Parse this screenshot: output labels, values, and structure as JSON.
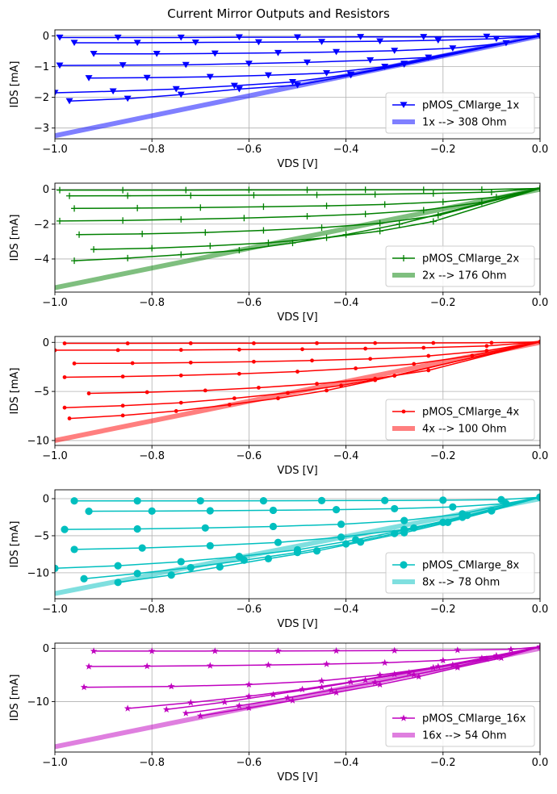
{
  "title": "Current Mirror Outputs and Resistors",
  "colors": {
    "blue": "#0000ff",
    "green": "#008000",
    "red": "#ff0000",
    "cyan": "#00bfbf",
    "magenta": "#bf00bf",
    "grid": "#b0b0b0"
  },
  "chart_data": [
    {
      "type": "line",
      "xlabel": "VDS [V]",
      "ylabel": "IDS [mA]",
      "xlim": [
        -1.0,
        0.0
      ],
      "ylim": [
        -3.35,
        0.2
      ],
      "xticks": [
        -1.0,
        -0.8,
        -0.6,
        -0.4,
        -0.2,
        0.0
      ],
      "xtick_labels": [
        "−1.0",
        "−0.8",
        "−0.6",
        "−0.4",
        "−0.2",
        "0.0"
      ],
      "yticks": [
        -3,
        -2,
        -1,
        0
      ],
      "ytick_labels": [
        "−3",
        "−2",
        "−1",
        "0"
      ],
      "grid": true,
      "legend_position": "lower-right",
      "marker": "triangle-down",
      "color": "#0000ff",
      "curve_series_name": "pMOS_CMlarge_1x",
      "resistor_series_name": "1x --> 308 Ohm",
      "resistor_line": {
        "x": [
          -1.0,
          0.0
        ],
        "y": [
          -3.25,
          0.0
        ]
      },
      "curves": [
        {
          "x": [
            -0.99,
            -0.87,
            -0.74,
            -0.62,
            -0.5,
            -0.37,
            -0.24,
            -0.11,
            0.0
          ],
          "y": [
            -0.05,
            -0.05,
            -0.05,
            -0.04,
            -0.04,
            -0.03,
            -0.03,
            -0.02,
            0.0
          ]
        },
        {
          "x": [
            -0.96,
            -0.83,
            -0.71,
            -0.58,
            -0.45,
            -0.33,
            -0.21,
            -0.09,
            0.0
          ],
          "y": [
            -0.22,
            -0.22,
            -0.21,
            -0.2,
            -0.19,
            -0.17,
            -0.14,
            -0.09,
            0.0
          ]
        },
        {
          "x": [
            -0.92,
            -0.79,
            -0.67,
            -0.54,
            -0.42,
            -0.3,
            -0.18,
            -0.07,
            0.0
          ],
          "y": [
            -0.58,
            -0.58,
            -0.57,
            -0.55,
            -0.52,
            -0.48,
            -0.4,
            -0.23,
            0.0
          ]
        },
        {
          "x": [
            -0.99,
            -0.86,
            -0.73,
            -0.6,
            -0.48,
            -0.35,
            -0.23,
            0.0
          ],
          "y": [
            -0.96,
            -0.95,
            -0.94,
            -0.9,
            -0.86,
            -0.79,
            -0.7,
            0.0
          ]
        },
        {
          "x": [
            -0.93,
            -0.81,
            -0.68,
            -0.56,
            -0.44,
            -0.32,
            0.0
          ],
          "y": [
            -1.37,
            -1.36,
            -1.33,
            -1.28,
            -1.21,
            -1.0,
            0.0
          ]
        },
        {
          "x": [
            -1.0,
            -0.88,
            -0.75,
            -0.63,
            -0.51,
            -0.39,
            -0.28,
            0.0
          ],
          "y": [
            -1.85,
            -1.8,
            -1.73,
            -1.62,
            -1.5,
            -1.25,
            -0.9,
            0.0
          ]
        },
        {
          "x": [
            -0.97,
            -0.85,
            -0.74,
            -0.62,
            -0.5,
            -0.39,
            -0.28,
            0.0
          ],
          "y": [
            -2.12,
            -2.04,
            -1.91,
            -1.73,
            -1.6,
            -1.28,
            -0.93,
            0.0
          ]
        }
      ]
    },
    {
      "type": "line",
      "xlabel": "VDS [V]",
      "ylabel": "IDS [mA]",
      "xlim": [
        -1.0,
        0.0
      ],
      "ylim": [
        -5.9,
        0.35
      ],
      "xticks": [
        -1.0,
        -0.8,
        -0.6,
        -0.4,
        -0.2,
        0.0
      ],
      "xtick_labels": [
        "−1.0",
        "−0.8",
        "−0.6",
        "−0.4",
        "−0.2",
        "0.0"
      ],
      "yticks": [
        -4,
        -2,
        0
      ],
      "ytick_labels": [
        "−4",
        "−2",
        "0"
      ],
      "grid": true,
      "legend_position": "lower-right",
      "marker": "plus",
      "color": "#008000",
      "curve_series_name": "pMOS_CMlarge_2x",
      "resistor_series_name": "2x --> 176 Ohm",
      "resistor_line": {
        "x": [
          -1.0,
          0.0
        ],
        "y": [
          -5.65,
          0.0
        ]
      },
      "curves": [
        {
          "x": [
            -0.99,
            -0.86,
            -0.73,
            -0.6,
            -0.48,
            -0.36,
            -0.24,
            -0.12,
            0.0
          ],
          "y": [
            -0.05,
            -0.05,
            -0.05,
            -0.04,
            -0.04,
            -0.03,
            -0.03,
            -0.02,
            0.05
          ]
        },
        {
          "x": [
            -0.97,
            -0.85,
            -0.72,
            -0.59,
            -0.46,
            -0.34,
            -0.22,
            -0.1,
            0.0
          ],
          "y": [
            -0.38,
            -0.37,
            -0.36,
            -0.34,
            -0.32,
            -0.29,
            -0.24,
            -0.16,
            0.05
          ]
        },
        {
          "x": [
            -0.96,
            -0.83,
            -0.7,
            -0.57,
            -0.44,
            -0.32,
            -0.2,
            -0.09,
            0.0
          ],
          "y": [
            -1.1,
            -1.08,
            -1.05,
            -1.0,
            -0.95,
            -0.87,
            -0.72,
            -0.45,
            0.05
          ]
        },
        {
          "x": [
            -0.99,
            -0.86,
            -0.74,
            -0.61,
            -0.48,
            -0.36,
            -0.24,
            -0.12,
            0.0
          ],
          "y": [
            -1.82,
            -1.79,
            -1.73,
            -1.65,
            -1.55,
            -1.42,
            -1.2,
            -0.75,
            0.05
          ]
        },
        {
          "x": [
            -0.95,
            -0.82,
            -0.69,
            -0.57,
            -0.45,
            -0.33,
            -0.21,
            0.0
          ],
          "y": [
            -2.6,
            -2.56,
            -2.48,
            -2.36,
            -2.2,
            -1.95,
            -1.5,
            0.05
          ]
        },
        {
          "x": [
            -0.92,
            -0.8,
            -0.68,
            -0.56,
            -0.44,
            -0.33,
            -0.22,
            0.0
          ],
          "y": [
            -3.45,
            -3.38,
            -3.25,
            -3.07,
            -2.78,
            -2.4,
            -1.85,
            0.05
          ]
        },
        {
          "x": [
            -0.96,
            -0.85,
            -0.74,
            -0.62,
            -0.51,
            -0.4,
            -0.29,
            0.0
          ],
          "y": [
            -4.1,
            -3.95,
            -3.75,
            -3.5,
            -3.08,
            -2.6,
            -2.0,
            0.05
          ]
        }
      ]
    },
    {
      "type": "line",
      "xlabel": "VDS [V]",
      "ylabel": "IDS [mA]",
      "xlim": [
        -1.0,
        0.0
      ],
      "ylim": [
        -10.5,
        0.6
      ],
      "xticks": [
        -1.0,
        -0.8,
        -0.6,
        -0.4,
        -0.2,
        0.0
      ],
      "xtick_labels": [
        "−1.0",
        "−0.8",
        "−0.6",
        "−0.4",
        "−0.2",
        "0.0"
      ],
      "yticks": [
        -10,
        -5,
        0
      ],
      "ytick_labels": [
        "−10",
        "−5",
        "0"
      ],
      "grid": true,
      "legend_position": "lower-right",
      "marker": "point",
      "color": "#ff0000",
      "curve_series_name": "pMOS_CMlarge_4x",
      "resistor_series_name": "4x --> 100 Ohm",
      "resistor_line": {
        "x": [
          -1.0,
          0.0
        ],
        "y": [
          -10.0,
          0.0
        ]
      },
      "curves": [
        {
          "x": [
            -0.98,
            -0.85,
            -0.72,
            -0.59,
            -0.46,
            -0.34,
            -0.22,
            -0.1,
            0.0
          ],
          "y": [
            -0.1,
            -0.1,
            -0.09,
            -0.09,
            -0.08,
            -0.07,
            -0.06,
            -0.04,
            0.05
          ]
        },
        {
          "x": [
            -1.0,
            -0.87,
            -0.74,
            -0.62,
            -0.49,
            -0.36,
            -0.24,
            -0.11,
            0.0
          ],
          "y": [
            -0.8,
            -0.79,
            -0.77,
            -0.74,
            -0.7,
            -0.64,
            -0.55,
            -0.37,
            0.05
          ]
        },
        {
          "x": [
            -0.96,
            -0.84,
            -0.72,
            -0.59,
            -0.47,
            -0.35,
            -0.23,
            -0.11,
            0.0
          ],
          "y": [
            -2.15,
            -2.12,
            -2.06,
            -1.97,
            -1.85,
            -1.68,
            -1.38,
            -0.85,
            0.05
          ]
        },
        {
          "x": [
            -0.98,
            -0.86,
            -0.74,
            -0.62,
            -0.5,
            -0.38,
            -0.26,
            -0.14,
            0.0
          ],
          "y": [
            -3.55,
            -3.48,
            -3.37,
            -3.2,
            -2.98,
            -2.65,
            -2.2,
            -1.35,
            0.05
          ]
        },
        {
          "x": [
            -0.93,
            -0.81,
            -0.69,
            -0.58,
            -0.46,
            -0.34,
            -0.23,
            0.0
          ],
          "y": [
            -5.2,
            -5.08,
            -4.9,
            -4.62,
            -4.22,
            -3.7,
            -2.85,
            0.05
          ]
        },
        {
          "x": [
            -0.98,
            -0.86,
            -0.74,
            -0.63,
            -0.52,
            -0.41,
            -0.3,
            0.0
          ],
          "y": [
            -6.65,
            -6.45,
            -6.15,
            -5.7,
            -5.15,
            -4.4,
            -3.4,
            0.05
          ]
        },
        {
          "x": [
            -0.97,
            -0.86,
            -0.75,
            -0.64,
            -0.54,
            -0.44,
            -0.34,
            0.0
          ],
          "y": [
            -7.75,
            -7.45,
            -7.0,
            -6.35,
            -5.7,
            -4.9,
            -3.85,
            0.05
          ]
        }
      ]
    },
    {
      "type": "line",
      "xlabel": "VDS [V]",
      "ylabel": "IDS [mA]",
      "xlim": [
        -1.0,
        0.0
      ],
      "ylim": [
        -13.5,
        1.2
      ],
      "xticks": [
        -1.0,
        -0.8,
        -0.6,
        -0.4,
        -0.2,
        0.0
      ],
      "xtick_labels": [
        "−1.0",
        "−0.8",
        "−0.6",
        "−0.4",
        "−0.2",
        "0.0"
      ],
      "yticks": [
        -10,
        -5,
        0
      ],
      "ytick_labels": [
        "−10",
        "−5",
        "0"
      ],
      "grid": true,
      "legend_position": "lower-right",
      "marker": "circle",
      "color": "#00bfbf",
      "curve_series_name": "pMOS_CMlarge_8x",
      "resistor_series_name": "8x --> 78 Ohm",
      "resistor_line": {
        "x": [
          -1.0,
          0.0
        ],
        "y": [
          -12.8,
          0.0
        ]
      },
      "curves": [
        {
          "x": [
            -0.96,
            -0.83,
            -0.7,
            -0.57,
            -0.45,
            -0.32,
            -0.2,
            -0.08,
            0.0
          ],
          "y": [
            -0.3,
            -0.3,
            -0.29,
            -0.28,
            -0.26,
            -0.24,
            -0.2,
            -0.13,
            0.2
          ]
        },
        {
          "x": [
            -0.93,
            -0.8,
            -0.68,
            -0.55,
            -0.42,
            -0.3,
            -0.18,
            -0.07,
            0.0
          ],
          "y": [
            -1.7,
            -1.67,
            -1.63,
            -1.57,
            -1.48,
            -1.35,
            -1.12,
            -0.66,
            0.2
          ]
        },
        {
          "x": [
            -0.98,
            -0.83,
            -0.69,
            -0.55,
            -0.41,
            -0.28,
            -0.16,
            0.0
          ],
          "y": [
            -4.15,
            -4.08,
            -3.95,
            -3.75,
            -3.45,
            -2.95,
            -2.05,
            0.2
          ]
        },
        {
          "x": [
            -0.96,
            -0.82,
            -0.68,
            -0.54,
            -0.41,
            -0.28,
            -0.16,
            0.0
          ],
          "y": [
            -6.85,
            -6.65,
            -6.35,
            -5.9,
            -5.2,
            -4.15,
            -2.5,
            0.2
          ]
        },
        {
          "x": [
            -1.0,
            -0.87,
            -0.74,
            -0.62,
            -0.5,
            -0.38,
            -0.26,
            -0.15,
            0.0
          ],
          "y": [
            -9.4,
            -9.05,
            -8.5,
            -7.8,
            -6.9,
            -5.55,
            -3.95,
            -2.25,
            0.2
          ]
        },
        {
          "x": [
            -0.94,
            -0.83,
            -0.72,
            -0.61,
            -0.5,
            -0.4,
            -0.3,
            -0.2,
            -0.1,
            0.0
          ],
          "y": [
            -10.8,
            -10.1,
            -9.3,
            -8.3,
            -7.25,
            -6.1,
            -4.7,
            -3.2,
            -1.6,
            0.2
          ]
        },
        {
          "x": [
            -0.87,
            -0.76,
            -0.66,
            -0.56,
            -0.46,
            -0.37,
            -0.28,
            -0.19,
            -0.1,
            0.0
          ],
          "y": [
            -11.3,
            -10.3,
            -9.2,
            -8.1,
            -7.05,
            -5.85,
            -4.6,
            -3.2,
            -1.65,
            0.2
          ]
        }
      ]
    },
    {
      "type": "line",
      "xlabel": "VDS [V]",
      "ylabel": "IDS [mA]",
      "xlim": [
        -1.0,
        0.0
      ],
      "ylim": [
        -19.5,
        1.0
      ],
      "xticks": [
        -1.0,
        -0.8,
        -0.6,
        -0.4,
        -0.2,
        0.0
      ],
      "xtick_labels": [
        "−1.0",
        "−0.8",
        "−0.6",
        "−0.4",
        "−0.2",
        "0.0"
      ],
      "yticks": [
        -10,
        0
      ],
      "ytick_labels": [
        "−10",
        "0"
      ],
      "grid": true,
      "legend_position": "lower-right",
      "marker": "star",
      "color": "#bf00bf",
      "curve_series_name": "pMOS_CMlarge_16x",
      "resistor_series_name": "16x --> 54 Ohm",
      "resistor_line": {
        "x": [
          -1.0,
          0.0
        ],
        "y": [
          -18.5,
          0.0
        ]
      },
      "curves": [
        {
          "x": [
            -0.92,
            -0.8,
            -0.67,
            -0.54,
            -0.42,
            -0.3,
            -0.17,
            -0.06,
            0.0
          ],
          "y": [
            -0.5,
            -0.5,
            -0.49,
            -0.47,
            -0.44,
            -0.4,
            -0.33,
            -0.19,
            0.3
          ]
        },
        {
          "x": [
            -0.93,
            -0.81,
            -0.68,
            -0.56,
            -0.44,
            -0.32,
            -0.2,
            -0.09,
            0.0
          ],
          "y": [
            -3.4,
            -3.35,
            -3.25,
            -3.12,
            -2.95,
            -2.7,
            -2.25,
            -1.35,
            0.3
          ]
        },
        {
          "x": [
            -0.94,
            -0.76,
            -0.6,
            -0.45,
            -0.33,
            -0.22,
            -0.11,
            0.0
          ],
          "y": [
            -7.3,
            -7.15,
            -6.8,
            -6.1,
            -5.0,
            -3.6,
            -2.0,
            0.3
          ]
        },
        {
          "x": [
            -0.85,
            -0.72,
            -0.6,
            -0.49,
            -0.39,
            -0.3,
            -0.21,
            -0.12,
            0.0
          ],
          "y": [
            -11.3,
            -10.2,
            -9.0,
            -7.7,
            -6.3,
            -4.85,
            -3.4,
            -1.85,
            0.3
          ]
        },
        {
          "x": [
            -0.77,
            -0.65,
            -0.55,
            -0.45,
            -0.36,
            -0.27,
            -0.18,
            -0.09,
            0.0
          ],
          "y": [
            -11.5,
            -10.1,
            -8.7,
            -7.3,
            -5.95,
            -4.55,
            -3.1,
            -1.6,
            0.3
          ]
        },
        {
          "x": [
            -0.73,
            -0.62,
            -0.52,
            -0.43,
            -0.34,
            -0.26,
            -0.17,
            -0.09,
            0.0
          ],
          "y": [
            -12.2,
            -10.8,
            -9.3,
            -7.85,
            -6.4,
            -4.95,
            -3.35,
            -1.7,
            0.3
          ]
        },
        {
          "x": [
            -0.7,
            -0.6,
            -0.51,
            -0.42,
            -0.33,
            -0.25,
            -0.17,
            -0.08,
            0.0
          ],
          "y": [
            -12.7,
            -11.2,
            -9.8,
            -8.3,
            -6.8,
            -5.3,
            -3.6,
            -1.8,
            0.3
          ]
        }
      ]
    }
  ]
}
